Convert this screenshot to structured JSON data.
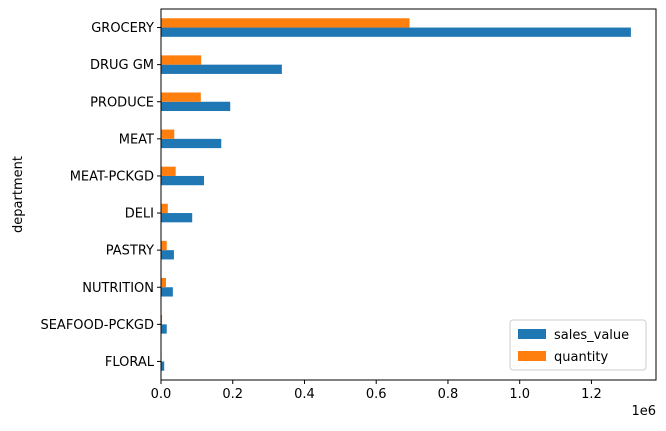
{
  "chart_data": {
    "type": "bar",
    "orientation": "horizontal",
    "ylabel": "department",
    "xlabel": "",
    "x_offset_text": "1e6",
    "x_scale_factor": 1000000,
    "xlim": [
      0,
      1380000
    ],
    "x_ticks": [
      0,
      200000,
      400000,
      600000,
      800000,
      1000000,
      1200000
    ],
    "x_tick_labels": [
      "0.0",
      "0.2",
      "0.4",
      "0.6",
      "0.8",
      "1.0",
      "1.2"
    ],
    "categories": [
      "FLORAL",
      "SEAFOOD-PCKGD",
      "NUTRITION",
      "PASTRY",
      "DELI",
      "MEAT-PCKGD",
      "MEAT",
      "PRODUCE",
      "DRUG GM",
      "GROCERY"
    ],
    "series": [
      {
        "name": "sales_value",
        "color": "#1f77b4",
        "values": [
          9000,
          16000,
          33000,
          36000,
          87000,
          120000,
          168000,
          193000,
          337000,
          1310000
        ]
      },
      {
        "name": "quantity",
        "color": "#ff7f0e",
        "values": [
          1500,
          3000,
          14000,
          16000,
          19000,
          41000,
          37000,
          111000,
          112000,
          693000
        ]
      }
    ],
    "legend_position": "lower right",
    "grid": false
  }
}
